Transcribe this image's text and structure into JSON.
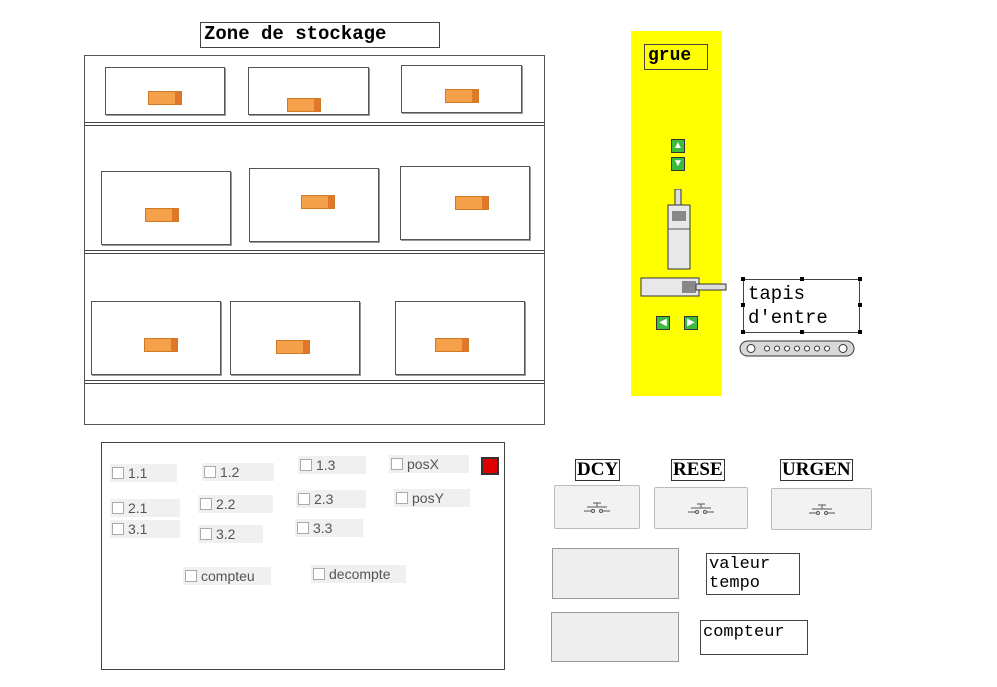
{
  "storage": {
    "title": "Zone de stockage",
    "rows": [
      {
        "cells": [
          {
            "has_box": true
          },
          {
            "has_box": true
          },
          {
            "has_box": true
          }
        ]
      },
      {
        "cells": [
          {
            "has_box": true
          },
          {
            "has_box": true
          },
          {
            "has_box": true
          }
        ]
      },
      {
        "cells": [
          {
            "has_box": true
          },
          {
            "has_box": true
          },
          {
            "has_box": true
          }
        ]
      }
    ]
  },
  "crane": {
    "label": "grue",
    "color": "#ffff00",
    "icons": [
      "arrow-up-icon",
      "arrow-down-icon",
      "arrow-left-icon",
      "arrow-right-icon"
    ]
  },
  "conveyor": {
    "label": "tapis\nd'entre"
  },
  "controls": {
    "checkboxes": {
      "c11": "1.1",
      "c12": "1.2",
      "c13": "1.3",
      "c21": "2.1",
      "c22": "2.2",
      "c23": "2.3",
      "c31": "3.1",
      "c32": "3.2",
      "c33": "3.3",
      "posx": "posX",
      "posy": "posY",
      "compteur": "compteu",
      "decompte": "decompte"
    },
    "indicator_color": "#dd0000"
  },
  "buttons": {
    "dcy": "DCY",
    "reset": "RESE",
    "urgence": "URGEN"
  },
  "fields": {
    "valeur_tempo": "valeur\ntempo",
    "compteur": "compteur"
  }
}
